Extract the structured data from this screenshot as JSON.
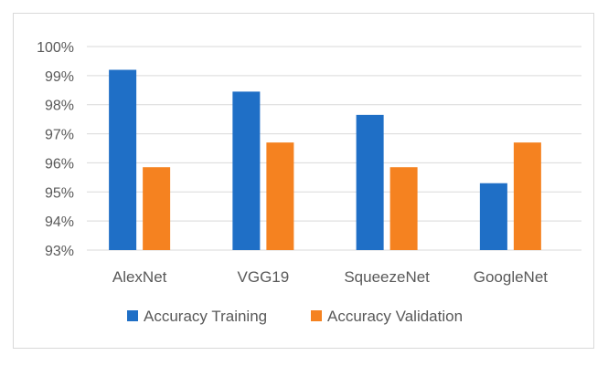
{
  "chart_data": {
    "type": "bar",
    "title": "",
    "xlabel": "",
    "ylabel": "",
    "categories": [
      "AlexNet",
      "VGG19",
      "SqueezeNet",
      "GoogleNet"
    ],
    "series": [
      {
        "name": "Accuracy Training",
        "color": "#1f6fc6",
        "values": [
          99.2,
          98.45,
          97.65,
          95.3
        ]
      },
      {
        "name": "Accuracy Validation",
        "color": "#f58220",
        "values": [
          95.85,
          96.7,
          95.85,
          96.7
        ]
      }
    ],
    "ylim": [
      93,
      100
    ],
    "yticks": [
      93,
      94,
      95,
      96,
      97,
      98,
      99,
      100
    ],
    "ytick_labels": [
      "93%",
      "94%",
      "95%",
      "96%",
      "97%",
      "98%",
      "99%",
      "100%"
    ],
    "grid": true,
    "legend_position": "bottom"
  }
}
